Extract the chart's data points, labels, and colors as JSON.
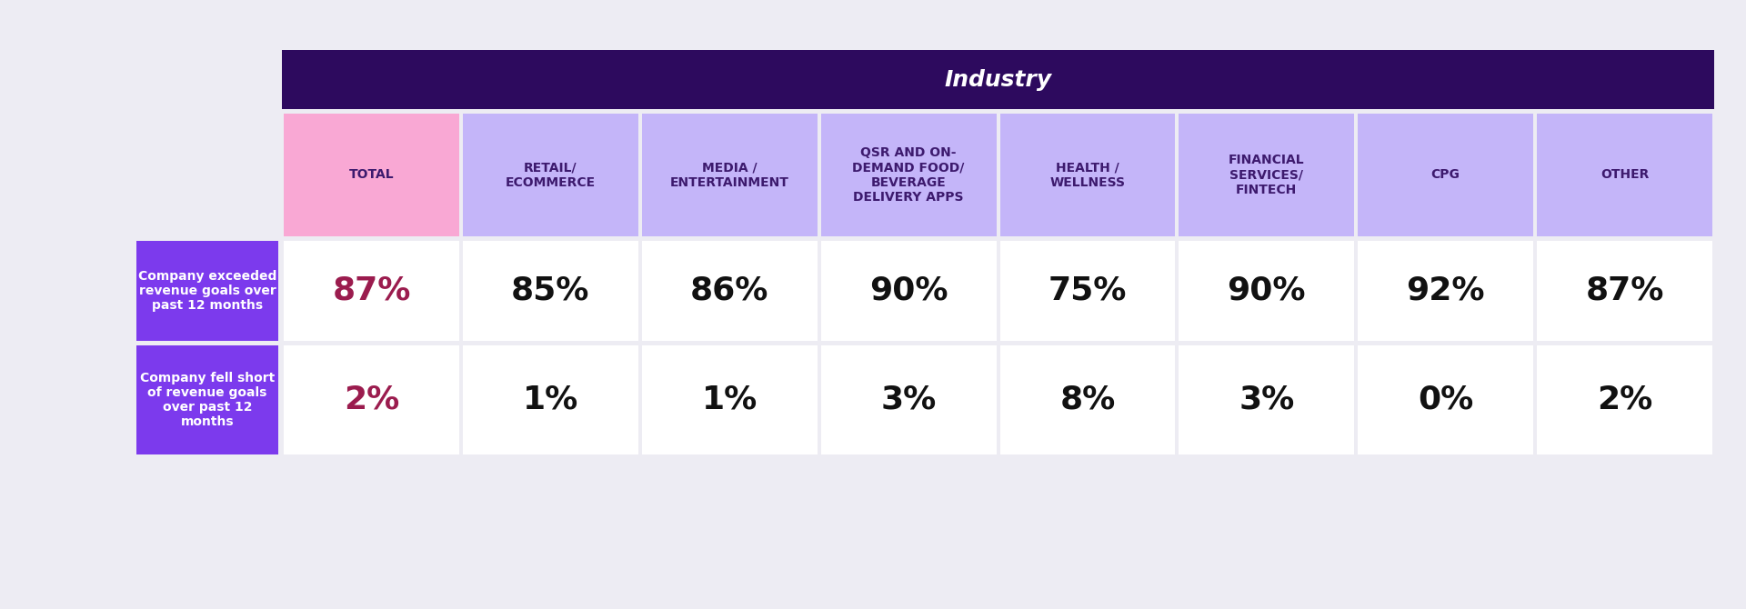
{
  "title": "Industry",
  "title_bg": "#2d0a5e",
  "title_color": "#ffffff",
  "bg_color": "#edecf3",
  "col_headers": [
    "TOTAL",
    "RETAIL/\nECOMMERCE",
    "MEDIA /\nENTERTAINMENT",
    "QSR AND ON-\nDEMAND FOOD/\nBEVERAGE\nDELIVERY APPS",
    "HEALTH /\nWELLNESS",
    "FINANCIAL\nSERVICES/\nFINTECH",
    "CPG",
    "OTHER"
  ],
  "col_header_bg_total": "#f9a8d4",
  "col_header_bg_others": "#c4b5f9",
  "row_labels": [
    "Company exceeded\nrevenue goals over\npast 12 months",
    "Company fell short\nof revenue goals\nover past 12\nmonths"
  ],
  "row_label_bg": "#7c3aed",
  "row_label_color": "#ffffff",
  "row1_values": [
    "87%",
    "85%",
    "86%",
    "90%",
    "75%",
    "90%",
    "92%",
    "87%"
  ],
  "row2_values": [
    "2%",
    "1%",
    "1%",
    "3%",
    "8%",
    "3%",
    "0%",
    "2%"
  ],
  "total_value_color": "#9b1c4e",
  "other_value_color": "#111111",
  "cell_bg": "#ffffff",
  "value_fontsize": 26,
  "header_fontsize": 10,
  "row_label_fontsize": 10,
  "title_fontsize": 18
}
